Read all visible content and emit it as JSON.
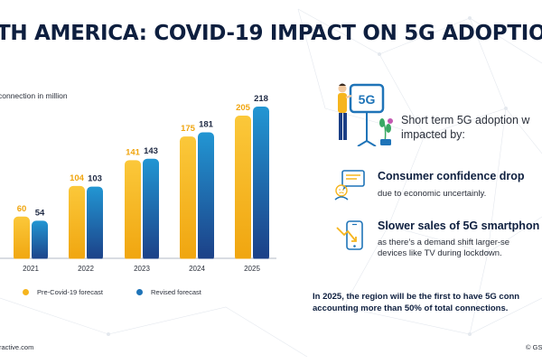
{
  "title": "TH AMERICA: COVID-19 IMPACT ON 5G ADOPTION",
  "colors": {
    "pre_covid": "#f6b51e",
    "revised": "#1f74b8",
    "navy": "#0e1f3f"
  },
  "illustration": {
    "sign_text": "5G",
    "icon": "person-with-5g-sign-icon"
  },
  "intro_lines": [
    "Short term 5G adoption w",
    "impacted by:"
  ],
  "points": [
    {
      "icon": "feedback-screen-icon",
      "heading": "Consumer confidence drop",
      "lines": [
        "due to economic uncertainly."
      ]
    },
    {
      "icon": "smartphone-decline-icon",
      "heading": "Slower sales of 5G smartphon",
      "lines": [
        "as there’s a demand shift larger-se",
        "devices like TV during lockdown."
      ]
    }
  ],
  "note_lines": [
    "In 2025, the region will be the first to have 5G conn",
    "accounting more than 50% of total connections."
  ],
  "footer": {
    "left": "ractive.com",
    "right": "© GS"
  },
  "chart_data": {
    "type": "bar",
    "ylabel": "connection in million",
    "categories": [
      "2021",
      "2022",
      "2023",
      "2024",
      "2025"
    ],
    "series": [
      {
        "name": "Pre-Covid-19 forecast",
        "values": [
          60,
          104,
          141,
          175,
          205
        ]
      },
      {
        "name": "Revised forecast",
        "values": [
          54,
          103,
          143,
          181,
          218
        ]
      }
    ],
    "ylim": [
      0,
      230
    ],
    "grid": false,
    "legend": "bottom"
  }
}
